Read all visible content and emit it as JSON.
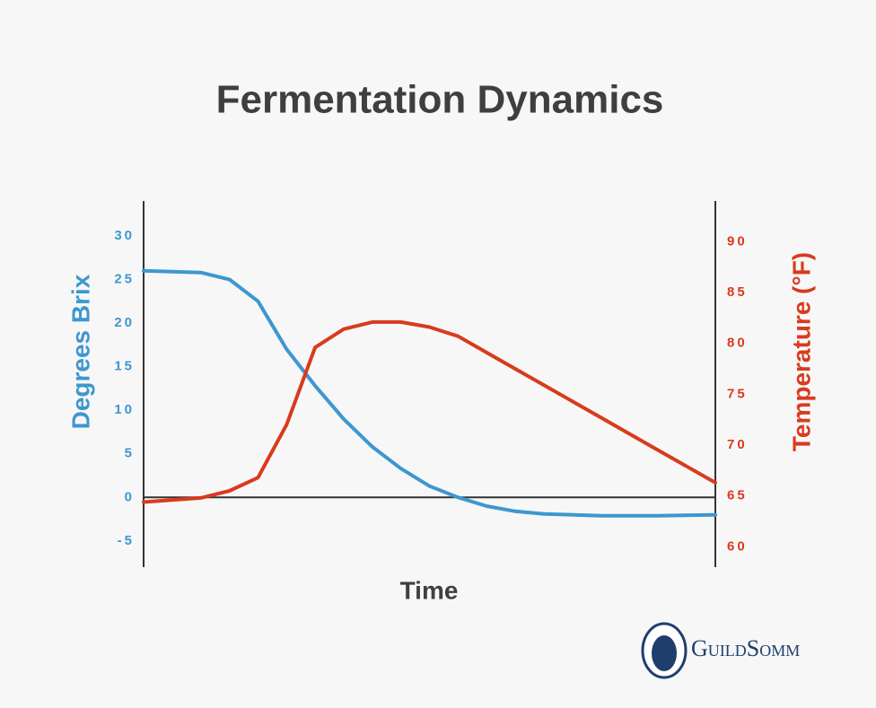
{
  "chart_data": {
    "type": "line",
    "title": "Fermentation Dynamics",
    "xlabel": "Time",
    "ylabel": "Degrees Brix",
    "y2label": "Temperature (°F)",
    "logo": "GuildSomm",
    "x": [
      0,
      10,
      15,
      20,
      25,
      30,
      35,
      40,
      45,
      50,
      55,
      60,
      65,
      70,
      80,
      90,
      100
    ],
    "xlim": [
      0,
      100
    ],
    "ylim": [
      -8,
      34
    ],
    "yticks": [
      -5,
      0,
      5,
      10,
      15,
      20,
      25,
      30
    ],
    "y2lim": [
      58,
      94
    ],
    "y2ticks": [
      60,
      65,
      70,
      75,
      80,
      85,
      90
    ],
    "series": [
      {
        "color": "#3d97d0",
        "axis": "y",
        "values": [
          26,
          25.8,
          25,
          22.5,
          17,
          12.8,
          9,
          5.8,
          3.3,
          1.3,
          0,
          -1,
          -1.6,
          -1.9,
          -2.1,
          -2.1,
          -2
        ]
      },
      {
        "color": "#d93a1d",
        "axis": "y2",
        "values": [
          64.4,
          64.8,
          65.5,
          66.8,
          72,
          79.6,
          81.4,
          82.1,
          82.1,
          81.6,
          80.7,
          79.1,
          77.5,
          75.9,
          72.7,
          69.5,
          66.3
        ]
      }
    ]
  }
}
